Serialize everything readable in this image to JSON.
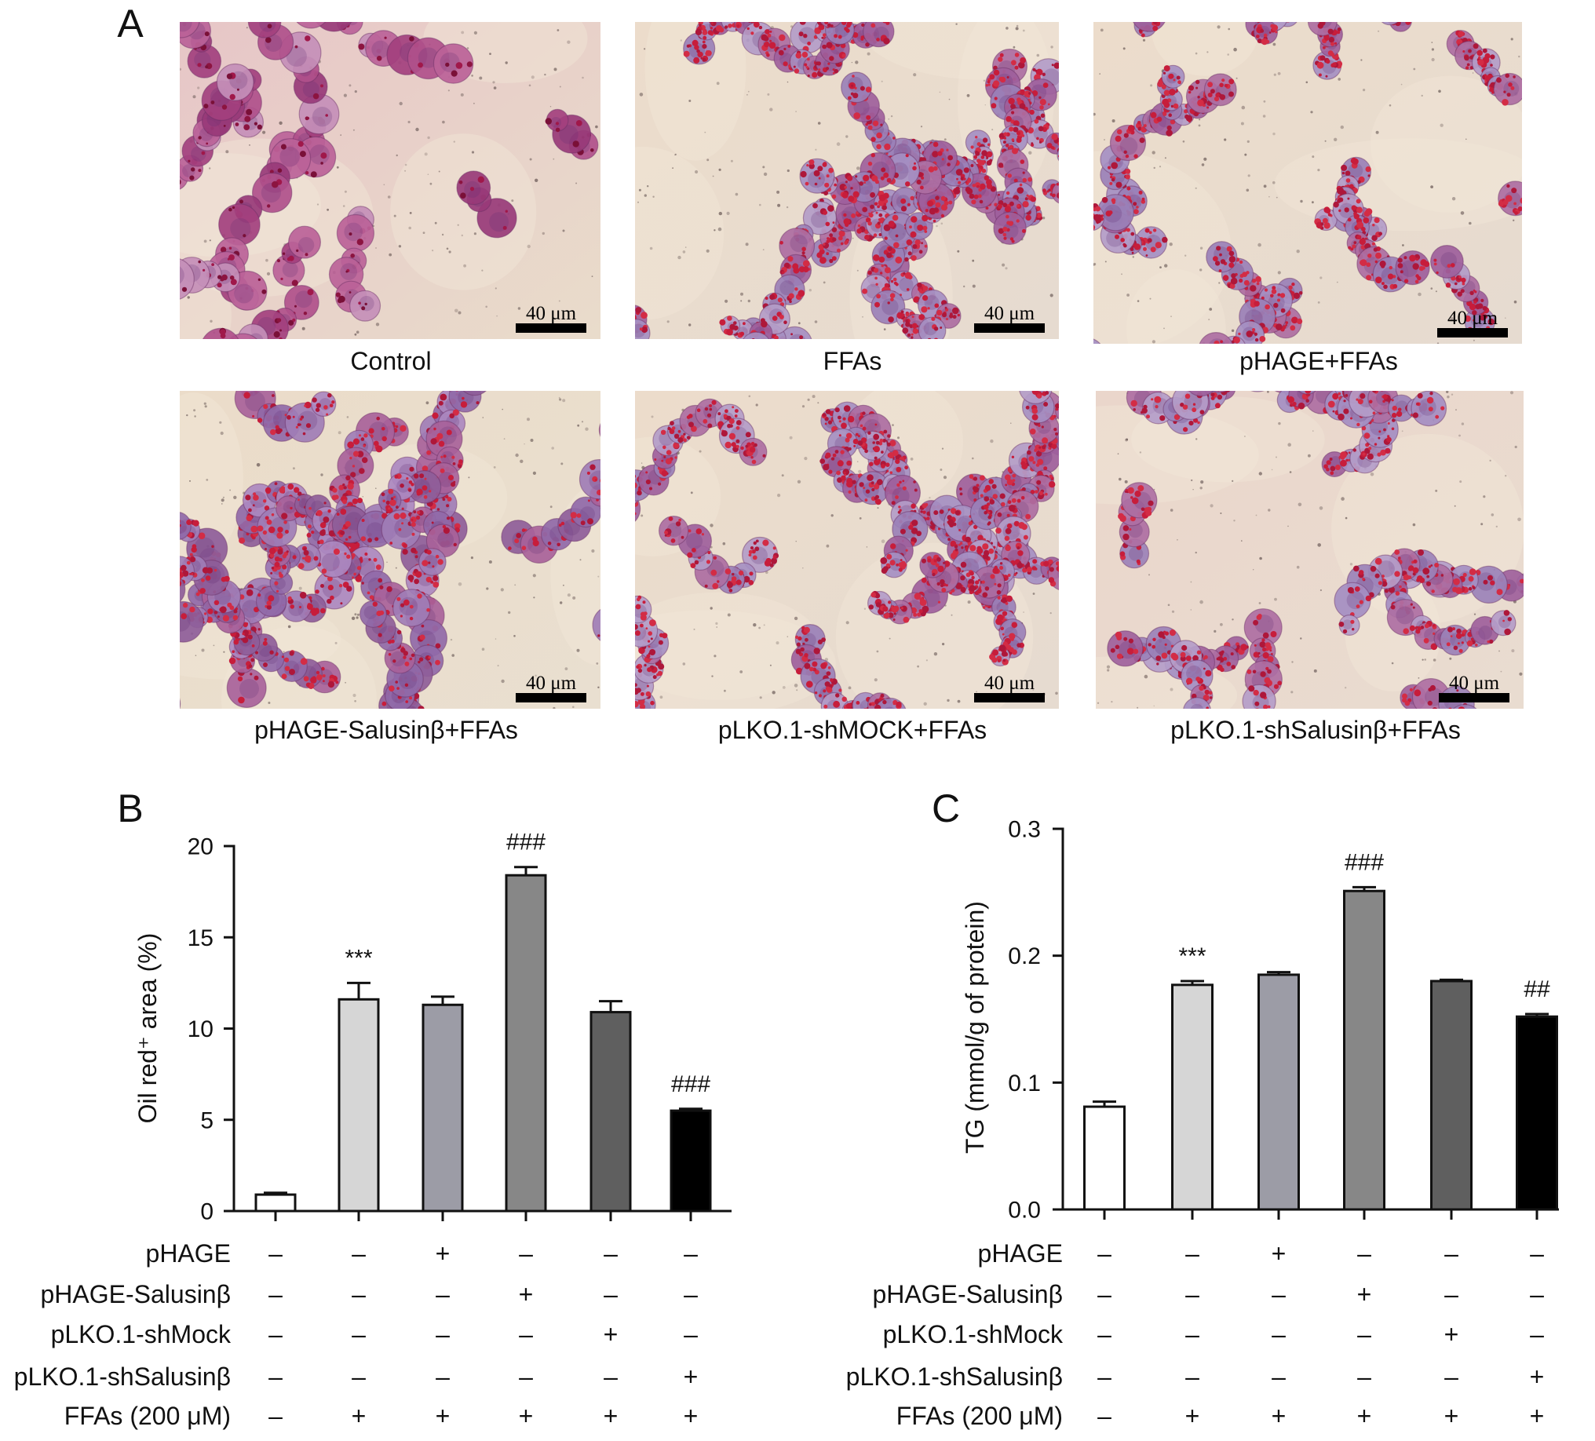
{
  "panel_a": {
    "label": "A",
    "micrographs": [
      {
        "caption": "Control",
        "scale_bar_label": "40 μm"
      },
      {
        "caption": "FFAs",
        "scale_bar_label": "40 μm"
      },
      {
        "caption": "pHAGE+FFAs",
        "scale_bar_label": "40 μm"
      },
      {
        "caption": "pHAGE-Salusinβ+FFAs",
        "scale_bar_label": "40 μm"
      },
      {
        "caption": "pLKO.1-shMOCK+FFAs",
        "scale_bar_label": "40 μm"
      },
      {
        "caption": "pLKO.1-shSalusinβ+FFAs",
        "scale_bar_label": "40 μm"
      }
    ]
  },
  "chart_data": [
    {
      "panel_label": "B",
      "type": "bar",
      "ylabel": "Oil red⁺ area (%)",
      "ylim": [
        0,
        20
      ],
      "yticks": [
        0,
        5,
        10,
        15,
        20
      ],
      "ytick_labels": [
        "0",
        "5",
        "10",
        "15",
        "20"
      ],
      "values": [
        0.9,
        11.6,
        11.3,
        18.4,
        10.9,
        5.5
      ],
      "errors": [
        0.1,
        0.9,
        0.45,
        0.45,
        0.6,
        0.1
      ],
      "bar_colors": [
        "#ffffff",
        "#d6d6d6",
        "#9c9ca6",
        "#878787",
        "#5f5f5f",
        "#000000"
      ],
      "grid": false,
      "annotations": [
        {
          "index": 1,
          "text": "***"
        },
        {
          "index": 3,
          "text": "###"
        },
        {
          "index": 5,
          "text": "###"
        }
      ],
      "treatment_table": [
        {
          "label": "pHAGE",
          "signs": [
            "–",
            "–",
            "+",
            "–",
            "–",
            "–"
          ]
        },
        {
          "label": "pHAGE-Salusinβ",
          "signs": [
            "–",
            "–",
            "–",
            "+",
            "–",
            "–"
          ]
        },
        {
          "label": "pLKO.1-shMock",
          "signs": [
            "–",
            "–",
            "–",
            "–",
            "+",
            "–"
          ]
        },
        {
          "label": "pLKO.1-shSalusinβ",
          "signs": [
            "–",
            "–",
            "–",
            "–",
            "–",
            "+"
          ]
        },
        {
          "label": "FFAs (200 μM)",
          "signs": [
            "–",
            "+",
            "+",
            "+",
            "+",
            "+"
          ]
        }
      ]
    },
    {
      "panel_label": "C",
      "type": "bar",
      "ylabel": "TG (mmol/g of protein)",
      "ylim": [
        0,
        0.3
      ],
      "yticks": [
        0,
        0.1,
        0.2,
        0.3
      ],
      "ytick_labels": [
        "0.0",
        "0.1",
        "0.2",
        "0.3"
      ],
      "values": [
        0.081,
        0.177,
        0.185,
        0.251,
        0.18,
        0.152
      ],
      "errors": [
        0.004,
        0.003,
        0.002,
        0.003,
        0.001,
        0.002
      ],
      "bar_colors": [
        "#ffffff",
        "#d6d6d6",
        "#9c9ca6",
        "#878787",
        "#5f5f5f",
        "#000000"
      ],
      "grid": false,
      "annotations": [
        {
          "index": 1,
          "text": "***"
        },
        {
          "index": 3,
          "text": "###"
        },
        {
          "index": 5,
          "text": "##"
        }
      ],
      "treatment_table": [
        {
          "label": "pHAGE",
          "signs": [
            "–",
            "–",
            "+",
            "–",
            "–",
            "–"
          ]
        },
        {
          "label": "pHAGE-Salusinβ",
          "signs": [
            "–",
            "–",
            "–",
            "+",
            "–",
            "–"
          ]
        },
        {
          "label": "pLKO.1-shMock",
          "signs": [
            "–",
            "–",
            "–",
            "–",
            "+",
            "–"
          ]
        },
        {
          "label": "pLKO.1-shSalusinβ",
          "signs": [
            "–",
            "–",
            "–",
            "–",
            "–",
            "+"
          ]
        },
        {
          "label": "FFAs (200 μM)",
          "signs": [
            "–",
            "+",
            "+",
            "+",
            "+",
            "+"
          ]
        }
      ]
    }
  ]
}
